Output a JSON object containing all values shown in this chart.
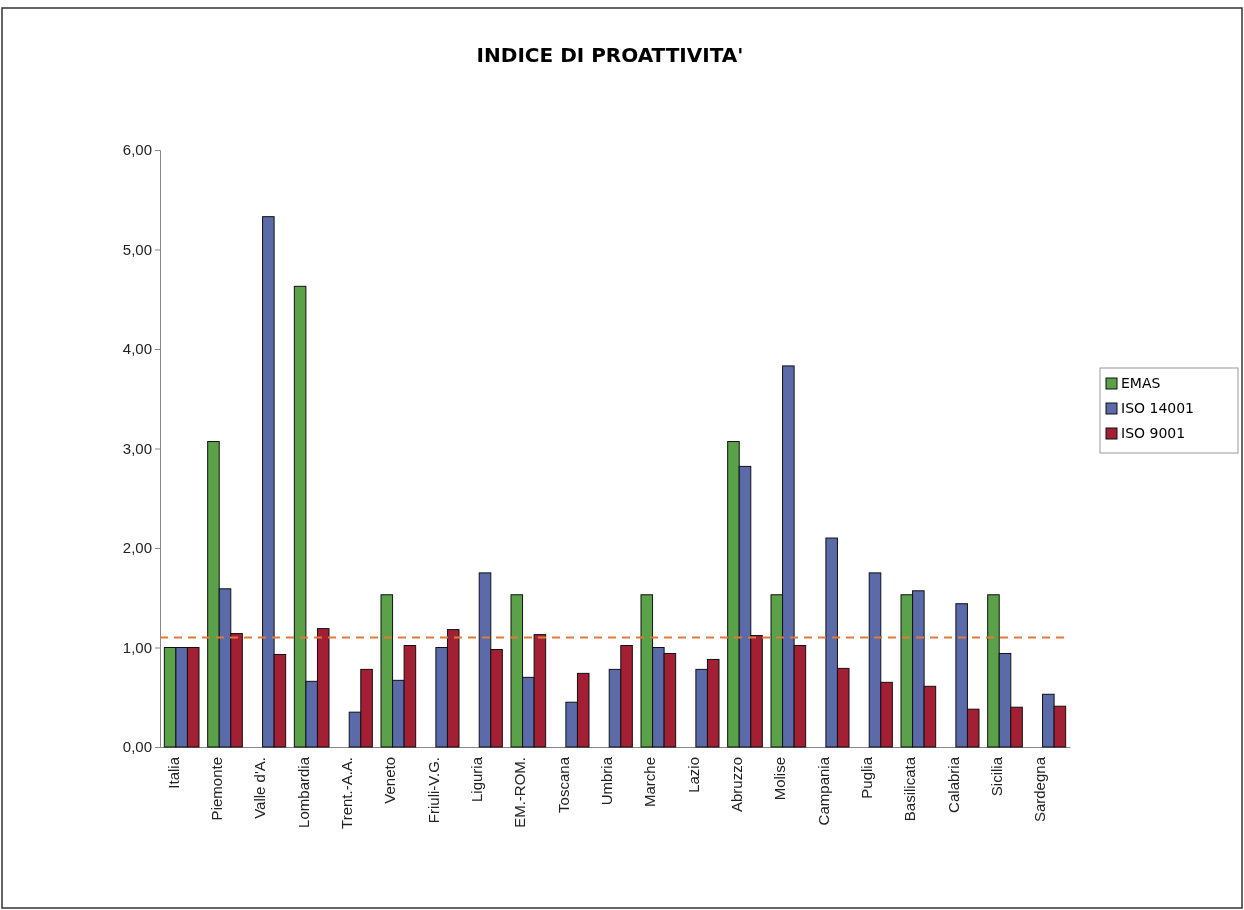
{
  "chart_data": {
    "type": "bar",
    "title": "INDICE DI PROATTIVITA'",
    "categories": [
      "Italia",
      "Piemonte",
      "Valle d'A.",
      "Lombardia",
      "Trent.-A.A.",
      "Veneto",
      "Friuli-V.G.",
      "Liguria",
      "EM.-ROM.",
      "Toscana",
      "Umbria",
      "Marche",
      "Lazio",
      "Abruzzo",
      "Molise",
      "Campania",
      "Puglia",
      "Basilicata",
      "Calabria",
      "Sicilia",
      "Sardegna"
    ],
    "series": [
      {
        "name": "EMAS",
        "color": "#5aa14a",
        "values": [
          1.0,
          3.07,
          0,
          4.63,
          0,
          1.53,
          0,
          0,
          1.53,
          0,
          0,
          1.53,
          0,
          3.07,
          1.53,
          0,
          0,
          1.53,
          0,
          1.53,
          0
        ]
      },
      {
        "name": "ISO 14001",
        "color": "#5b6aa8",
        "values": [
          1.0,
          1.59,
          5.33,
          0.66,
          0.35,
          0.67,
          1.0,
          1.75,
          0.7,
          0.45,
          0.78,
          1.0,
          0.78,
          2.82,
          3.83,
          2.1,
          1.75,
          1.57,
          1.44,
          0.94,
          0.53
        ]
      },
      {
        "name": "ISO 9001",
        "color": "#a31f34",
        "values": [
          1.0,
          1.14,
          0.93,
          1.19,
          0.78,
          1.02,
          1.18,
          0.98,
          1.13,
          0.74,
          1.02,
          0.94,
          0.88,
          1.12,
          1.02,
          0.79,
          0.65,
          0.61,
          0.38,
          0.4,
          0.41
        ]
      }
    ],
    "ylim": [
      0,
      6
    ],
    "yticks": [
      {
        "value": 0,
        "label": "0,00"
      },
      {
        "value": 1,
        "label": "1,00"
      },
      {
        "value": 2,
        "label": "2,00"
      },
      {
        "value": 3,
        "label": "3,00"
      },
      {
        "value": 4,
        "label": "4,00"
      },
      {
        "value": 5,
        "label": "5,00"
      },
      {
        "value": 6,
        "label": "6,00"
      }
    ],
    "ref_lines": [
      {
        "axis": "y",
        "value": 1.1,
        "color": "#e07b39",
        "line_style": "dashed"
      }
    ],
    "legend": "right"
  }
}
